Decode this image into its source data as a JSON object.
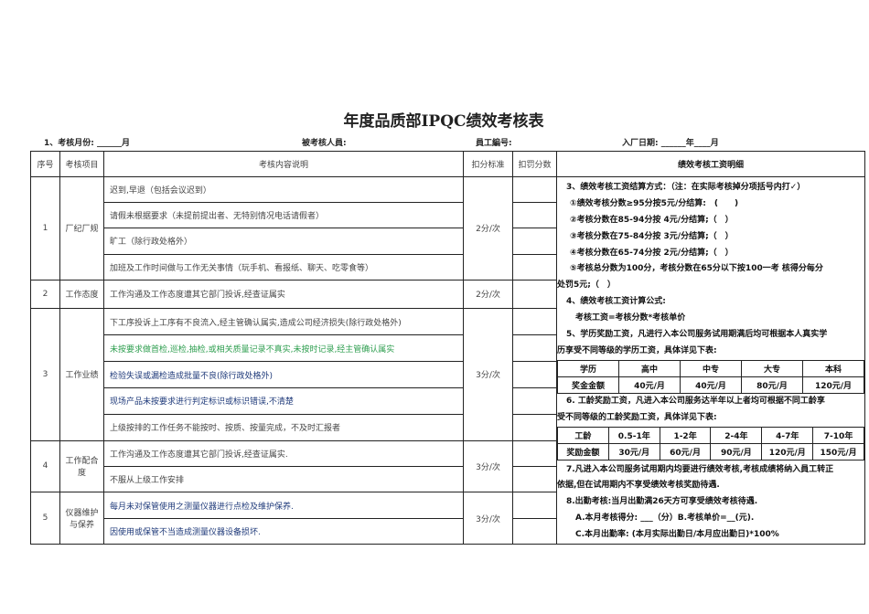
{
  "title": "年度品质部IPQC绩效考核表",
  "info": {
    "month": "1、考核月份: ______月",
    "person": "被考核人員:",
    "emp_no": "員工編号:",
    "join_date": "入厂日期: ______年____月"
  },
  "headers": [
    "序号",
    "考核项目",
    "考核内容说明",
    "扣分标准",
    "扣罚分数",
    "绩效考核工资明细"
  ],
  "sections": [
    {
      "no": "1",
      "item": "厂纪厂规",
      "standard": "2分/次",
      "rows": [
        "迟到,早退（包括会议迟到）",
        "请假未根据要求（未提前提出者、无特别情况电话请假者）",
        "旷工（除行政处格外）",
        "加班及工作时间做与工作无关事情（玩手机、看报纸、聊天、吃零食等）"
      ]
    },
    {
      "no": "2",
      "item": "工作态度",
      "standard": "2分/次",
      "rows": [
        "工作沟通及工作态度遭其它部门投诉,经查证属实"
      ]
    },
    {
      "no": "3",
      "item": "工作业绩",
      "standard": "3分/次",
      "rows": [
        "下工序投诉上工序有不良流入,经主管确认属实,造成公司经济损失(除行政处格外)",
        "未按要求做首检,巡检,抽检,或相关质量记录不真实,未按时记录,经主管确认属实",
        "检验失误或漏检造成批量不良(除行政处格外)",
        "现场产品未按要求进行判定标识或标识错误,不清楚",
        "上级按排的工作任务不能按时、按质、按量完成，不及时汇报者"
      ]
    },
    {
      "no": "4",
      "item": "工作配合度",
      "standard": "3分/次",
      "rows": [
        "工作沟通及工作态度遭其它部门投诉,经查证属实.",
        "不服从上级工作安排"
      ]
    },
    {
      "no": "5",
      "item": "仪器维护与保养",
      "standard": "3分/次",
      "rows": [
        "每月未对保管使用之测量仪器进行点检及维护保养.",
        "因使用或保管不当造成测量仪器设备损坏."
      ]
    }
  ],
  "colors": {
    "green_text": "#2e9e4f",
    "blue_text": "#1f3a7a"
  },
  "right": {
    "lines_a": [
      "3、绩效考核工资结算方式：（注：在实际考核掉分项括号内打✓）",
      "①绩效考核分数≥95分按5元/分结算:　(　　)",
      "②考核分数在85-94分按 4元/分结算;（　）",
      "③考核分数在75-84分按 3元/分结算;（　）",
      "④考核分数在65-74分按 2元/分结算;（　）",
      "⑤考核总分数为100分，考核分数在65分以下按100一考 核得分每分",
      "处罚5元;（　）",
      "4、绩效考核工资计算公式:",
      "考核工资=考核分数*考核单价",
      "5、学历奖励工资，凡进行入本公司服务试用期满后均可根据本人真实学",
      "历享受不同等级的学历工资，具体详见下表:"
    ],
    "edu_table": [
      [
        "学历",
        "高中",
        "中专",
        "大专",
        "本科"
      ],
      [
        "奖金金额",
        "40元/月",
        "40元/月",
        "80元/月",
        "120元/月"
      ]
    ],
    "lines_b": [
      "6. 工龄奖励工资，凡进入本公司服务达半年以上者均可根据不同工龄享",
      "受不同等级的工龄奖励工资，具体详见下表:"
    ],
    "seniority_table": [
      [
        "工龄",
        "0.5-1年",
        "1-2年",
        "2-4年",
        "4-7年",
        "7-10年"
      ],
      [
        "奖励金额",
        "30元/月",
        "60元/月",
        "90元/月",
        "120元/月",
        "150元/月"
      ]
    ],
    "lines_c": [
      "7.凡进入本公司服务试用期内均要进行绩效考核,考核成绩将纳入員工转正",
      "依据,但在试用期内不享受绩效考核奖励待遇.",
      "8.出勤考核:当月出勤满26天方可享受绩效考核待遇.",
      "A.本月考核得分: ___（分）B.考核单价=__(元).",
      "C.本月出勤率: (本月实际出勤日/本月应出勤日)*100%"
    ]
  }
}
